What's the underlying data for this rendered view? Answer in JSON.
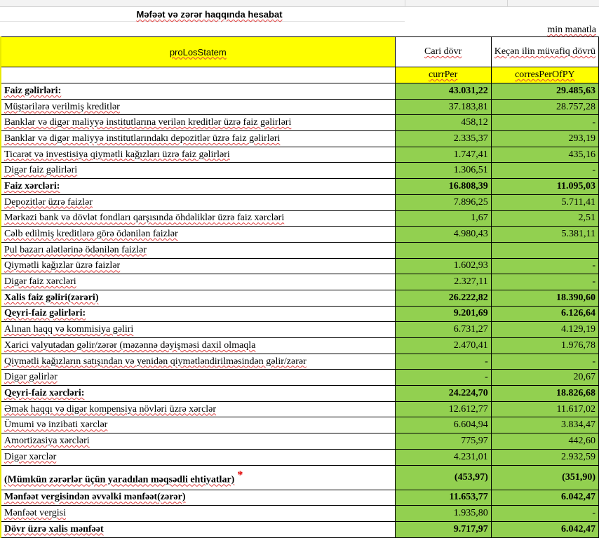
{
  "title": "Məfəət və zərər haqqında hesabat",
  "unit": "min manatla",
  "header": {
    "label": "proLosStatem",
    "current": "Cari dövr",
    "previous": "Keçən ilin müvafiq dövrü",
    "current_code": "currPer",
    "previous_code": "corresPerOfPY"
  },
  "colors": {
    "value_bg": "#92d050",
    "header_bg": "#ffff00"
  },
  "rows": [
    {
      "label": "Faiz gəlirləri:",
      "cur": "43.031,22",
      "prev": "29.485,63",
      "bold": true
    },
    {
      "label": "Müştərilərə verilmiş kreditlər",
      "cur": "37.183,81",
      "prev": "28.757,28"
    },
    {
      "label": "Banklar və digər maliyyə institutlarına verilən kreditlər üzrə faiz gəlirləri",
      "cur": "458,12",
      "prev": "-"
    },
    {
      "label": "Banklar və digər maliyyə institutlarındakı depozitlər üzrə faiz gəlirləri",
      "cur": "2.335,37",
      "prev": "293,19"
    },
    {
      "label": "Ticarət və investisiya qiymətli kağızları üzrə faiz gəlirləri",
      "cur": "1.747,41",
      "prev": "435,16"
    },
    {
      "label": "Digər faiz gəlirləri",
      "cur": "1.306,51",
      "prev": "-"
    },
    {
      "label": "Faiz xərcləri:",
      "cur": "16.808,39",
      "prev": "11.095,03",
      "bold": true
    },
    {
      "label": "Depozitlər üzrə faizlər",
      "cur": "7.896,25",
      "prev": "5.711,41"
    },
    {
      "label": "Mərkəzi bank və dövlət fondları qarşısında öhdəliklər üzrə faiz xərcləri",
      "cur": "1,67",
      "prev": "2,51"
    },
    {
      "label": "Cəlb edilmiş kreditlərə görə ödənilən faizlər",
      "cur": "4.980,43",
      "prev": "5.381,11"
    },
    {
      "label": "Pul bazarı alətlərinə ödənilən faizlər",
      "cur": "",
      "prev": ""
    },
    {
      "label": "Qiymətli kağızlar üzrə faizlər",
      "cur": "1.602,93",
      "prev": "-"
    },
    {
      "label": "Digər faiz xərcləri",
      "cur": "2.327,11",
      "prev": "-"
    },
    {
      "label": "Xalis faiz gəliri(zərəri)",
      "cur": "26.222,82",
      "prev": "18.390,60",
      "bold": true
    },
    {
      "label": "Qeyri-faiz gəlirləri:",
      "cur": "9.201,69",
      "prev": "6.126,64",
      "bold": true
    },
    {
      "label": "Alınan haqq və kommisiya gəliri",
      "cur": "6.731,27",
      "prev": "4.129,19"
    },
    {
      "label": "Xarici valyutadan gəlir/zərər (məzənnə dəyişməsi daxil olmaqla",
      "cur": "2.470,41",
      "prev": "1.976,78"
    },
    {
      "label": "Qiymətli kağızların satışından və yenidən qiymətləndirilməsindən gəlir/zərər",
      "cur": "-",
      "prev": "-"
    },
    {
      "label": "Digər gəlirlər",
      "cur": "-",
      "prev": "20,67"
    },
    {
      "label": "Qeyri-faiz xərcləri:",
      "cur": "24.224,70",
      "prev": "18.826,68",
      "bold": true
    },
    {
      "label": "Əmək haqqı və digər kompensiya növləri üzrə xərclər",
      "cur": "12.612,77",
      "prev": "11.617,02"
    },
    {
      "label": "Ümumi və inzibati xərclər",
      "cur": "6.604,94",
      "prev": "3.834,47"
    },
    {
      "label": "Amortizasiya xərcləri",
      "cur": "775,97",
      "prev": "442,60"
    },
    {
      "label": "Digər xərclər",
      "cur": "4.231,01",
      "prev": "2.932,59"
    },
    {
      "label": "(Mümkün zərərlər üçün yaradılan məqsədli ehtiyatlar)",
      "cur": "(453,97)",
      "prev": "(351,90)",
      "bold": true,
      "star": "*"
    },
    {
      "label": "Mənfəət vergisindən əvvəlki mənfəət(zərər)",
      "cur": "11.653,77",
      "prev": "6.042,47",
      "bold": true
    },
    {
      "label": "Mənfəət vergisi",
      "cur": "1.935,80",
      "prev": "-"
    },
    {
      "label": "Dövr üzrə xalis mənfəət",
      "cur": "9.717,97",
      "prev": "6.042,47",
      "bold": true
    }
  ]
}
